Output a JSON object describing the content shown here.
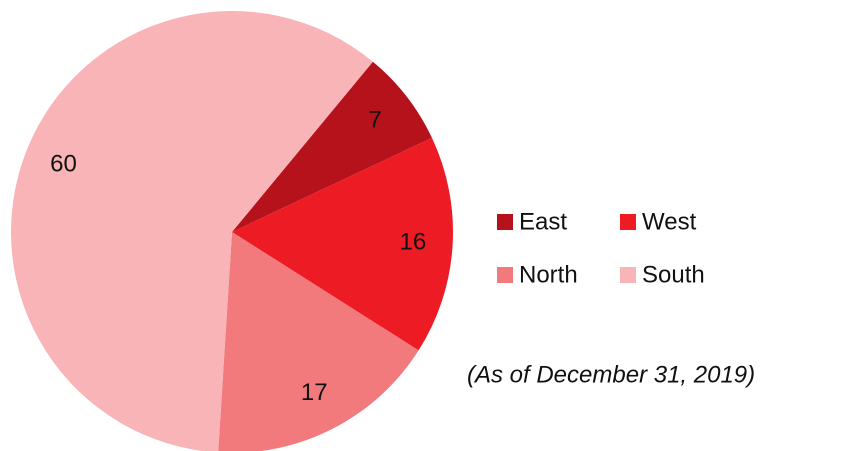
{
  "chart_data": {
    "type": "pie",
    "categories": [
      "East",
      "West",
      "North",
      "South"
    ],
    "values": [
      7,
      16,
      17,
      60
    ],
    "colors": [
      "#b5121b",
      "#ed1c24",
      "#f27a7d",
      "#f8b4b7"
    ],
    "note": "(As of December 31, 2019)"
  }
}
